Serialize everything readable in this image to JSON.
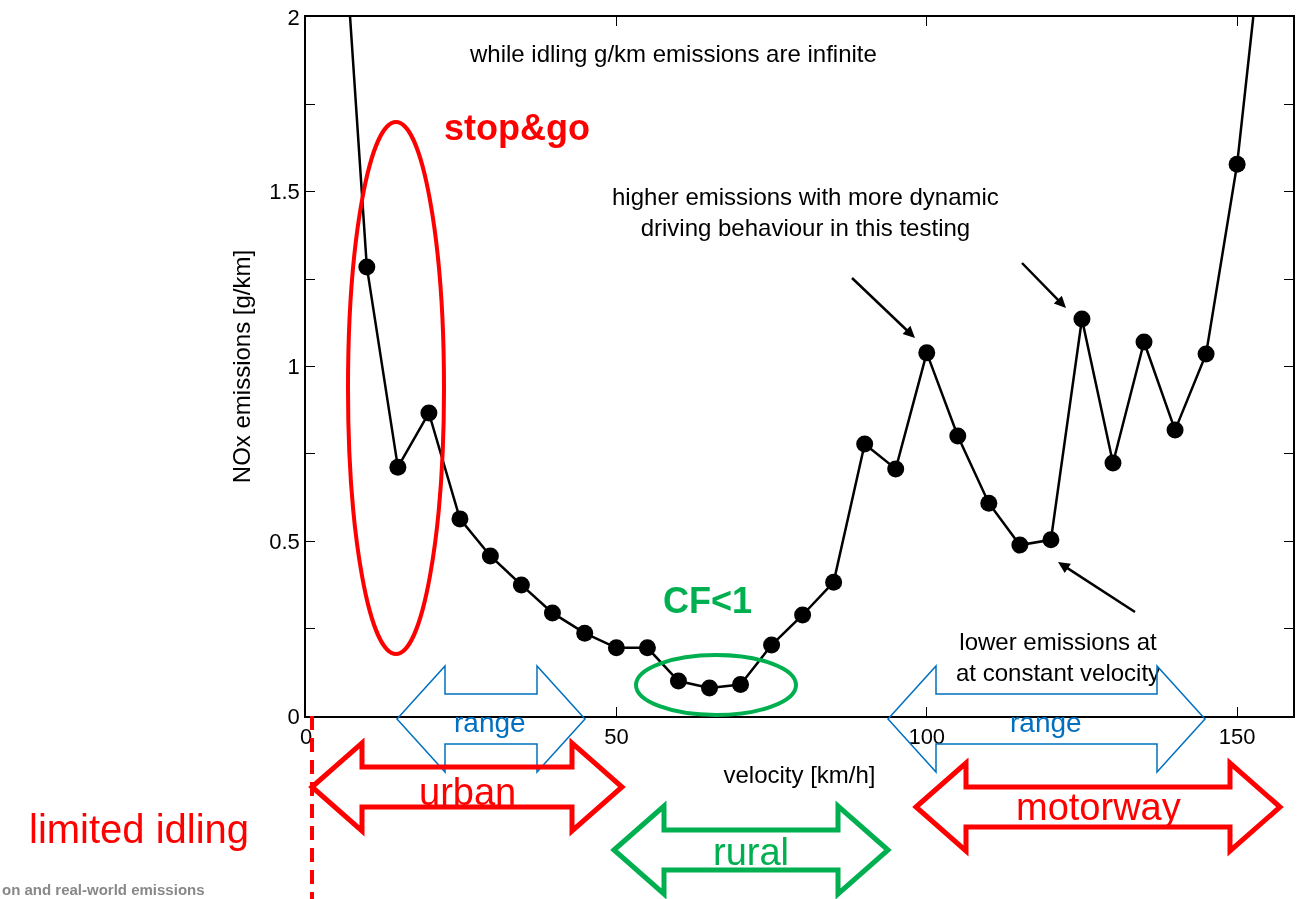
{
  "chart_data": {
    "type": "line",
    "xlabel": "velocity [km/h]",
    "ylabel": "NOx emissions [g/km]",
    "xlim": [
      0,
      159
    ],
    "xticks": [
      0,
      50,
      100,
      150
    ],
    "ylim": [
      0,
      2
    ],
    "yticks": [
      0,
      {
        "value": 0.25,
        "label": null
      },
      0.5,
      {
        "value": 0.75,
        "label": null
      },
      1,
      {
        "value": 1.25,
        "label": null
      },
      1.5,
      {
        "value": 1.75,
        "label": null
      },
      2
    ],
    "grid": false,
    "series": [
      {
        "type": "line",
        "marker": "none",
        "color": "#000000",
        "x": [
          7.1,
          9.8,
          14.8,
          19.8,
          24.8,
          29.7,
          34.7,
          39.7,
          44.9,
          50,
          55,
          60,
          65,
          70,
          75,
          80,
          85,
          90,
          95,
          100,
          105,
          110,
          115,
          120,
          125,
          130,
          135,
          140,
          145,
          150,
          152.6
        ],
        "values": [
          2,
          1.285,
          0.712,
          0.867,
          0.564,
          0.458,
          0.375,
          0.295,
          0.237,
          0.195,
          0.195,
          0.1,
          0.08,
          0.09,
          0.203,
          0.289,
          0.383,
          0.778,
          0.707,
          1.039,
          0.801,
          0.609,
          0.489,
          0.504,
          1.136,
          0.724,
          1.07,
          0.818,
          1.036,
          1.579,
          2
        ]
      },
      {
        "type": "scatter",
        "marker": "circle",
        "color": "#000000",
        "x": [
          9.8,
          14.8,
          19.8,
          24.8,
          29.7,
          34.7,
          39.7,
          44.9,
          50,
          55,
          60,
          65,
          70,
          75,
          80,
          85,
          90,
          95,
          100,
          105,
          110,
          115,
          120,
          125,
          130,
          135,
          140,
          145,
          150
        ],
        "values": [
          1.285,
          0.712,
          0.867,
          0.564,
          0.458,
          0.375,
          0.295,
          0.237,
          0.195,
          0.195,
          0.1,
          0.08,
          0.09,
          0.203,
          0.289,
          0.383,
          0.778,
          0.707,
          1.039,
          0.801,
          0.609,
          0.489,
          0.504,
          1.136,
          0.724,
          1.07,
          0.818,
          1.036,
          1.579
        ]
      }
    ],
    "annotations": [
      "limited idling",
      "while idling g/km emissions are infinite",
      "stop&go",
      "higher emissions with more dynamic\ndriving behaviour in this testing",
      "CF<1",
      "lower emissions at\nat constant velocity",
      "range",
      "range",
      "urban",
      "rural",
      "motorway",
      "on and real-world emissions"
    ]
  }
}
